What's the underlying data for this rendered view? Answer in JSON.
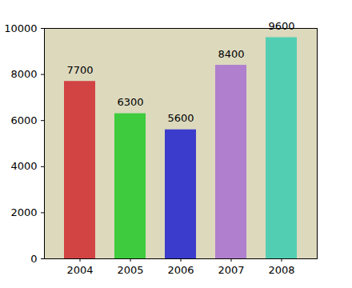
{
  "chart_data": {
    "type": "bar",
    "categories": [
      "2004",
      "2005",
      "2006",
      "2007",
      "2008"
    ],
    "values": [
      7700,
      6300,
      5600,
      8400,
      9600
    ],
    "colors": [
      "#d24444",
      "#3ecb3e",
      "#3c3ccc",
      "#b07fcd",
      "#52ceb2"
    ],
    "ylim": [
      0,
      10000
    ],
    "yticks": [
      0,
      2000,
      4000,
      6000,
      8000,
      10000
    ],
    "grid": false,
    "data_labels": true
  }
}
